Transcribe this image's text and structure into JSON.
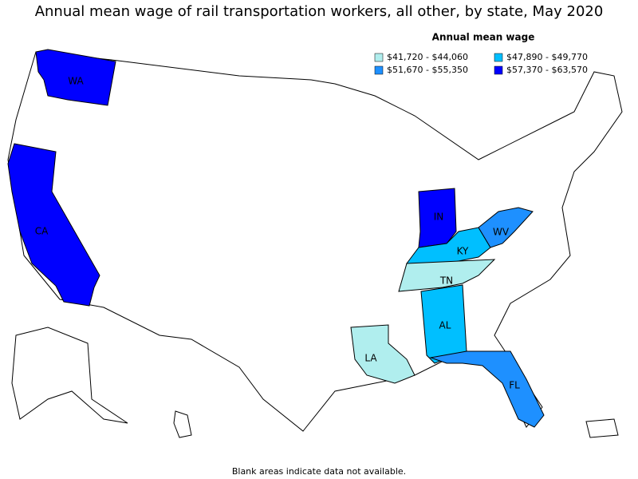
{
  "title": "Annual mean wage of rail transportation workers, all other, by state, May 2020",
  "legend": {
    "title": "Annual mean wage",
    "items": [
      {
        "label": "$41,720 - $44,060",
        "color": "#b0eeee"
      },
      {
        "label": "$47,890 - $49,770",
        "color": "#00bfff"
      },
      {
        "label": "$51,670 - $55,350",
        "color": "#1e90ff"
      },
      {
        "label": "$57,370 - $63,570",
        "color": "#0000ff"
      }
    ]
  },
  "states": [
    {
      "label": "WA",
      "color": "#0000ff"
    },
    {
      "label": "CA",
      "color": "#0000ff"
    },
    {
      "label": "IN",
      "color": "#0000ff"
    },
    {
      "label": "KY",
      "color": "#00bfff"
    },
    {
      "label": "WV",
      "color": "#1e90ff"
    },
    {
      "label": "TN",
      "color": "#b0eeee"
    },
    {
      "label": "AL",
      "color": "#00bfff"
    },
    {
      "label": "LA",
      "color": "#b0eeee"
    },
    {
      "label": "FL",
      "color": "#1e90ff"
    }
  ],
  "footnote": "Blank areas indicate data not available."
}
